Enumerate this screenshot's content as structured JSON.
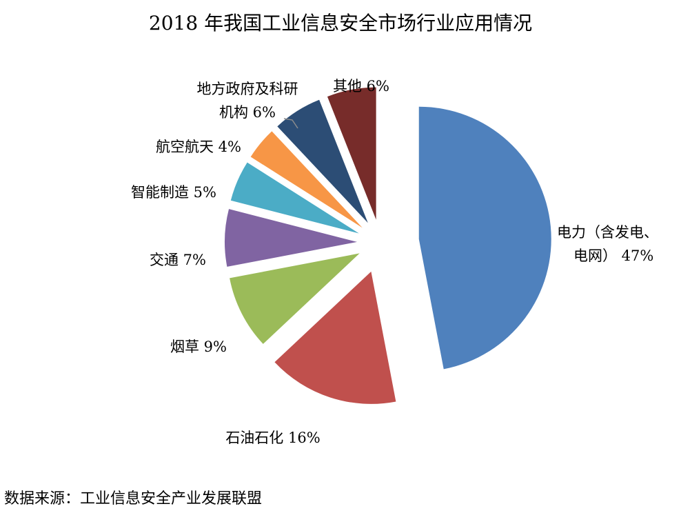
{
  "chart_data": {
    "type": "pie",
    "title": "2018 年我国工业信息安全市场行业应用情况",
    "unit": "%",
    "slices": [
      {
        "name": "电力（含发电、电网）",
        "label_lines": [
          "电力（含发电、",
          "电网） 47%"
        ],
        "value": 47,
        "color": "#4f81bd"
      },
      {
        "name": "石油石化",
        "label_lines": [
          "石油石化 16%"
        ],
        "value": 16,
        "color": "#c0504d"
      },
      {
        "name": "烟草",
        "label_lines": [
          "烟草 9%"
        ],
        "value": 9,
        "color": "#9bbb59"
      },
      {
        "name": "交通",
        "label_lines": [
          "交通 7%"
        ],
        "value": 7,
        "color": "#8064a2"
      },
      {
        "name": "智能制造",
        "label_lines": [
          "智能制造 5%"
        ],
        "value": 5,
        "color": "#4bacc6"
      },
      {
        "name": "航空航天",
        "label_lines": [
          "航空航天 4%"
        ],
        "value": 4,
        "color": "#f79646"
      },
      {
        "name": "地方政府及科研机构",
        "label_lines": [
          "地方政府及科研",
          "机构 6%"
        ],
        "value": 6,
        "color": "#2c4d75"
      },
      {
        "name": "其他",
        "label_lines": [
          "其他 6%"
        ],
        "value": 6,
        "color": "#772c2a"
      }
    ]
  },
  "source_note": "数据来源：工业信息安全产业发展联盟"
}
